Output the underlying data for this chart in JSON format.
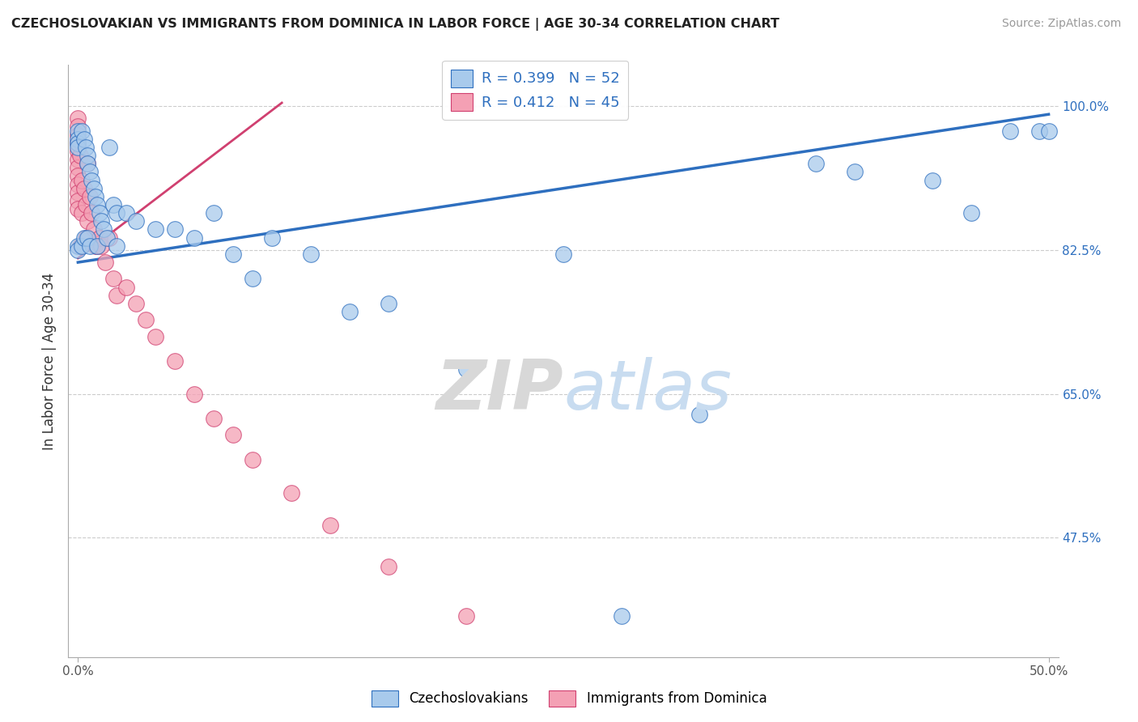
{
  "title": "CZECHOSLOVAKIAN VS IMMIGRANTS FROM DOMINICA IN LABOR FORCE | AGE 30-34 CORRELATION CHART",
  "source": "Source: ZipAtlas.com",
  "ylabel": "In Labor Force | Age 30-34",
  "legend_blue_label": "Czechoslovakians",
  "legend_pink_label": "Immigrants from Dominica",
  "blue_R": "R = 0.399",
  "blue_N": "N = 52",
  "pink_R": "R = 0.412",
  "pink_N": "N = 45",
  "blue_color": "#A8CAEC",
  "pink_color": "#F4A0B4",
  "blue_line_color": "#2E6FBF",
  "pink_line_color": "#D04070",
  "blue_x": [
    0.0,
    0.0,
    0.0,
    0.0,
    0.0,
    0.0,
    0.002,
    0.002,
    0.003,
    0.003,
    0.004,
    0.005,
    0.005,
    0.005,
    0.006,
    0.006,
    0.007,
    0.008,
    0.009,
    0.01,
    0.01,
    0.011,
    0.012,
    0.013,
    0.015,
    0.016,
    0.018,
    0.02,
    0.02,
    0.025,
    0.03,
    0.04,
    0.05,
    0.06,
    0.07,
    0.08,
    0.09,
    0.1,
    0.12,
    0.14,
    0.16,
    0.2,
    0.25,
    0.28,
    0.32,
    0.38,
    0.4,
    0.44,
    0.46,
    0.48,
    0.495,
    0.5
  ],
  "blue_y": [
    0.97,
    0.96,
    0.955,
    0.95,
    0.83,
    0.825,
    0.97,
    0.83,
    0.96,
    0.84,
    0.95,
    0.94,
    0.93,
    0.84,
    0.92,
    0.83,
    0.91,
    0.9,
    0.89,
    0.88,
    0.83,
    0.87,
    0.86,
    0.85,
    0.84,
    0.95,
    0.88,
    0.87,
    0.83,
    0.87,
    0.86,
    0.85,
    0.85,
    0.84,
    0.87,
    0.82,
    0.79,
    0.84,
    0.82,
    0.75,
    0.76,
    0.68,
    0.82,
    0.38,
    0.625,
    0.93,
    0.92,
    0.91,
    0.87,
    0.97,
    0.97,
    0.97
  ],
  "pink_x": [
    0.0,
    0.0,
    0.0,
    0.0,
    0.0,
    0.0,
    0.0,
    0.0,
    0.0,
    0.0,
    0.0,
    0.0,
    0.001,
    0.001,
    0.002,
    0.002,
    0.003,
    0.004,
    0.004,
    0.005,
    0.005,
    0.006,
    0.007,
    0.008,
    0.009,
    0.01,
    0.011,
    0.012,
    0.014,
    0.016,
    0.018,
    0.02,
    0.025,
    0.03,
    0.035,
    0.04,
    0.05,
    0.06,
    0.07,
    0.08,
    0.09,
    0.11,
    0.13,
    0.16,
    0.2
  ],
  "pink_y": [
    0.985,
    0.975,
    0.965,
    0.955,
    0.945,
    0.935,
    0.925,
    0.915,
    0.905,
    0.895,
    0.885,
    0.875,
    0.94,
    0.83,
    0.91,
    0.87,
    0.9,
    0.88,
    0.84,
    0.93,
    0.86,
    0.89,
    0.87,
    0.85,
    0.83,
    0.83,
    0.84,
    0.83,
    0.81,
    0.84,
    0.79,
    0.77,
    0.78,
    0.76,
    0.74,
    0.72,
    0.69,
    0.65,
    0.62,
    0.6,
    0.57,
    0.53,
    0.49,
    0.44,
    0.38
  ]
}
